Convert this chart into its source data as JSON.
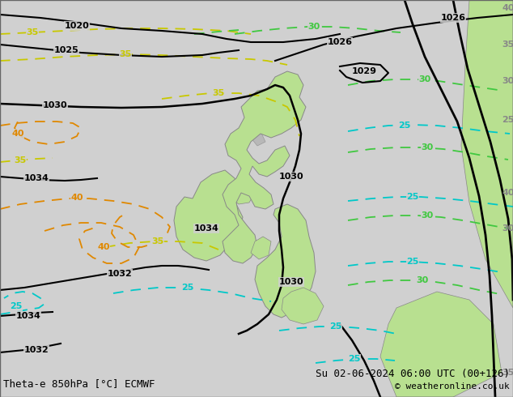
{
  "title_left": "Theta-e 850hPa [°C] ECMWF",
  "title_right": "Su 02-06-2024 06:00 UTC (00+126)",
  "copyright": "© weatheronline.co.uk",
  "bg_color": "#d0d0d0",
  "land_gray_color": "#b8b8b8",
  "green_land_color": "#b8e090",
  "figsize": [
    6.34,
    4.9
  ],
  "dpi": 100,
  "p_color": "#000000",
  "yellow_color": "#c8c800",
  "orange_color": "#e08800",
  "cyan_color": "#00c8c8",
  "green_color": "#40c840",
  "font_size": 8,
  "font_size_title": 9
}
